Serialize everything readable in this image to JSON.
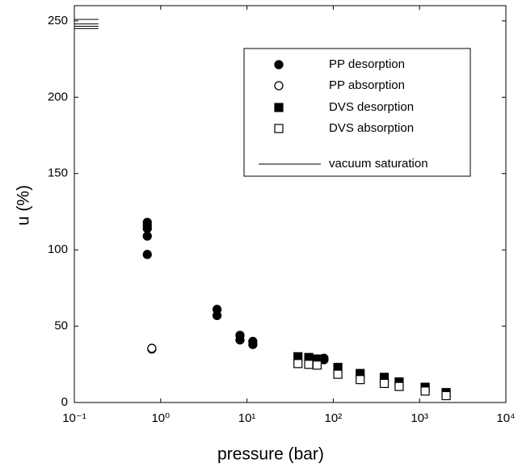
{
  "chart_data": {
    "type": "scatter",
    "xlabel": "pressure (bar)",
    "ylabel": "u (%)",
    "xscale": "log",
    "xlim": [
      0.1,
      10000
    ],
    "ylim": [
      0,
      260
    ],
    "xticks": [
      {
        "value": 0.1,
        "label": "10⁻¹"
      },
      {
        "value": 1,
        "label": "10⁰"
      },
      {
        "value": 10,
        "label": "10¹"
      },
      {
        "value": 100,
        "label": "10²"
      },
      {
        "value": 1000,
        "label": "10³"
      },
      {
        "value": 10000,
        "label": "10⁴"
      }
    ],
    "yticks": [
      0,
      50,
      100,
      150,
      200,
      250
    ],
    "legend": "upper right",
    "series": [
      {
        "name": "PP desorption",
        "marker": "circle",
        "filled": true,
        "color": "#000000",
        "x": [
          0.7,
          0.7,
          0.7,
          0.7,
          0.7,
          4.5,
          4.5,
          8.3,
          8.3,
          11.7,
          11.7,
          78,
          78
        ],
        "values": [
          118,
          116,
          114,
          109,
          97,
          61,
          57,
          44,
          41,
          40,
          38,
          29,
          28
        ]
      },
      {
        "name": "PP absorption",
        "marker": "circle",
        "filled": false,
        "color": "#000000",
        "x": [
          0.79,
          0.79
        ],
        "values": [
          35,
          35.5
        ]
      },
      {
        "name": "DVS desorption",
        "marker": "square",
        "filled": true,
        "color": "#000000",
        "x": [
          39,
          52,
          65,
          113,
          205,
          390,
          580,
          1160,
          2030
        ],
        "values": [
          30,
          29.5,
          28.5,
          23,
          19,
          16.5,
          13.5,
          10,
          6.5
        ]
      },
      {
        "name": "DVS absorption",
        "marker": "square",
        "filled": false,
        "color": "#000000",
        "x": [
          39,
          52,
          65,
          113,
          205,
          390,
          580,
          1160,
          2030
        ],
        "values": [
          25.5,
          25,
          24.5,
          18.5,
          15,
          12.5,
          10.5,
          7.5,
          4.5
        ]
      },
      {
        "name": "vacuum saturation",
        "marker": "hline",
        "color": "#000000",
        "x_extent": [
          0.1,
          0.19
        ],
        "values": [
          251,
          248,
          246.5,
          245
        ]
      }
    ]
  }
}
